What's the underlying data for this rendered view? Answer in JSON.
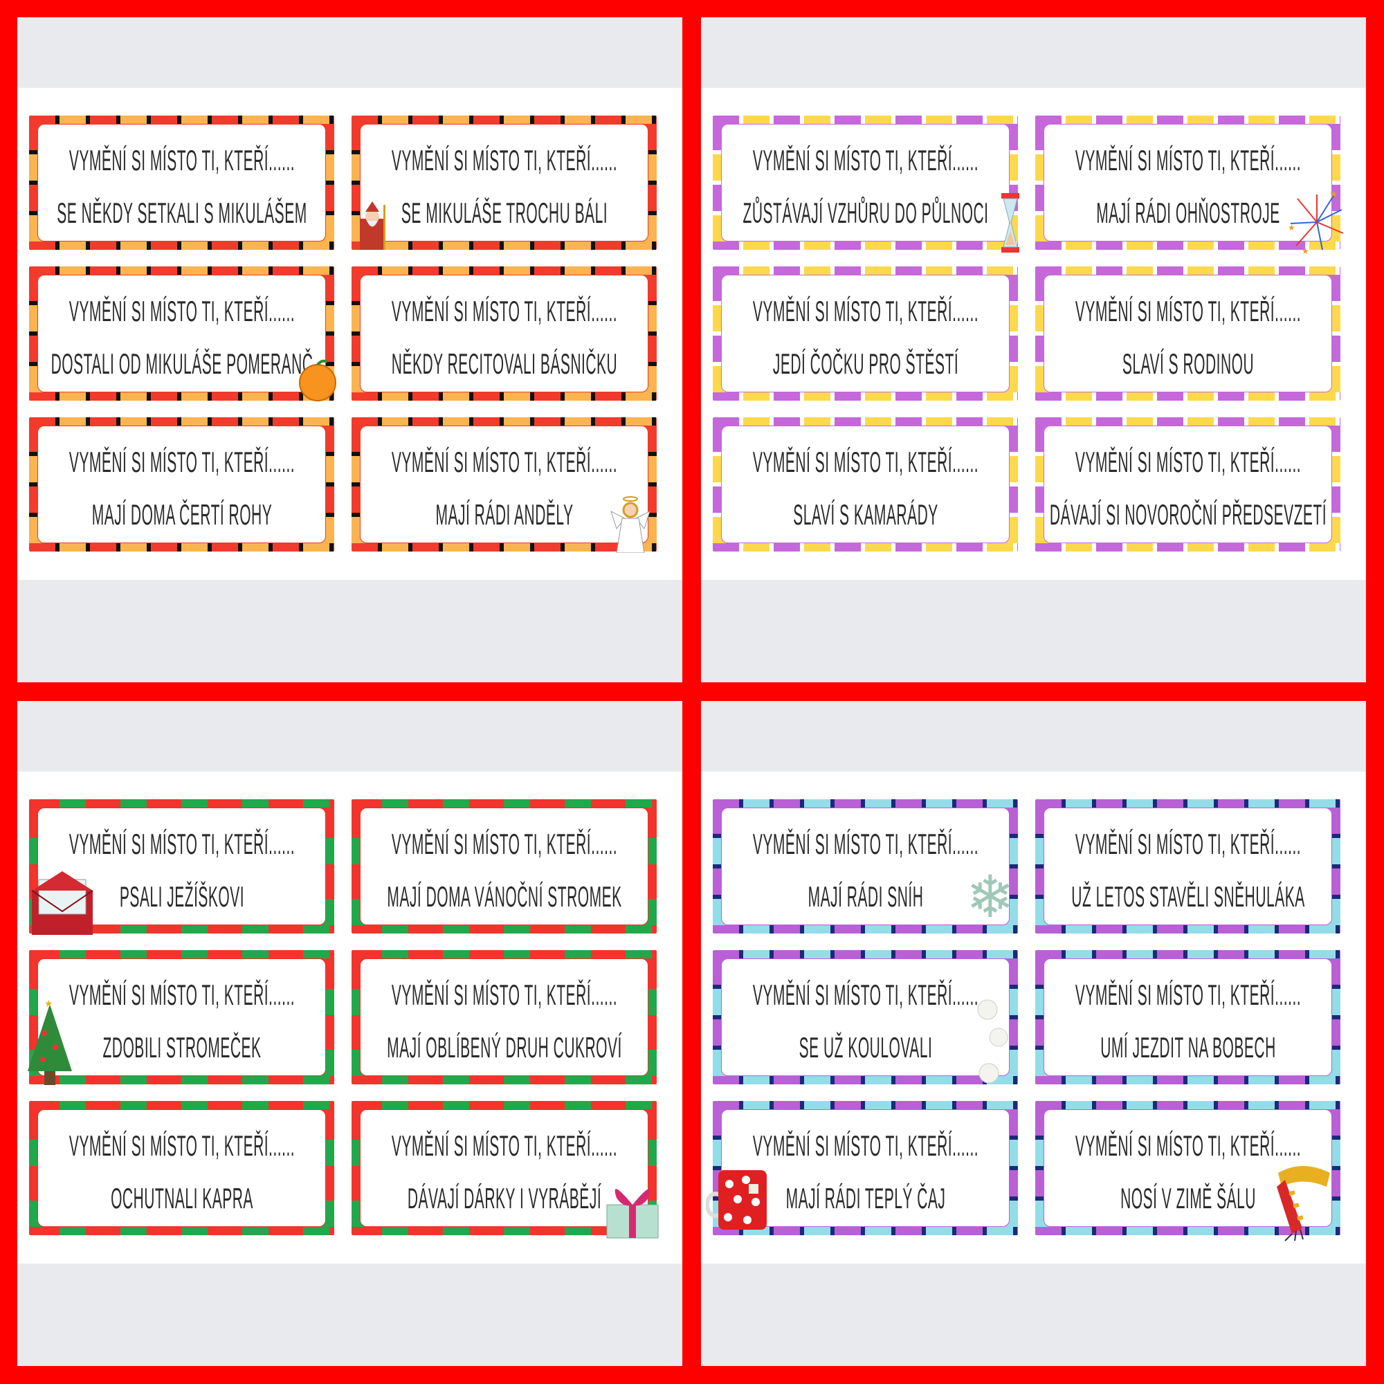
{
  "colors": {
    "background": "#ff0000"
  },
  "panels": [
    {
      "name": "mikulas",
      "colors": [
        "#f23b2c",
        "#fbb44f"
      ],
      "tick": "#111",
      "line": "#e83a2a",
      "cards": [
        {
          "line1": "VYMĚNÍ SI MÍSTO TI, KTEŘÍ......",
          "line2": "SE NĚKDY SETKALI S MIKULÁŠEM",
          "icon": ""
        },
        {
          "line1": "VYMĚNÍ SI MÍSTO TI, KTEŘÍ......",
          "line2": "SE MIKULÁŠE TROCHU BÁLI",
          "icon": "saint-nicholas-icon"
        },
        {
          "line1": "VYMĚNÍ SI MÍSTO TI, KTEŘÍ......",
          "line2": "DOSTALI OD MIKULÁŠE POMERANČ",
          "icon": "orange-icon"
        },
        {
          "line1": "VYMĚNÍ SI MÍSTO TI, KTEŘÍ......",
          "line2": "NĚKDY RECITOVALI BÁSNIČKU",
          "icon": ""
        },
        {
          "line1": "VYMĚNÍ SI MÍSTO TI, KTEŘÍ......",
          "line2": "MAJÍ DOMA ČERTÍ ROHY",
          "icon": ""
        },
        {
          "line1": "VYMĚNÍ SI MÍSTO TI, KTEŘÍ......",
          "line2": "MAJÍ RÁDI ANDĚLY",
          "icon": "angel-icon"
        }
      ]
    },
    {
      "name": "new-year",
      "colors": [
        "#c468da",
        "#fcd94c"
      ],
      "tick": "#fff",
      "line": "#c468da",
      "cards": [
        {
          "line1": "VYMĚNÍ SI MÍSTO TI, KTEŘÍ......",
          "line2": "ZŮSTÁVAJÍ VZHŮRU DO PŮLNOCI",
          "icon": "hourglass-icon"
        },
        {
          "line1": "VYMĚNÍ SI MÍSTO TI, KTEŘÍ......",
          "line2": "MAJÍ RÁDI OHŇOSTROJE",
          "icon": "fireworks-icon"
        },
        {
          "line1": "VYMĚNÍ SI MÍSTO TI, KTEŘÍ......",
          "line2": "JEDÍ ČOČKU PRO ŠTĚSTÍ",
          "icon": ""
        },
        {
          "line1": "VYMĚNÍ SI MÍSTO TI, KTEŘÍ......",
          "line2": "SLAVÍ S RODINOU",
          "icon": ""
        },
        {
          "line1": "VYMĚNÍ SI MÍSTO TI, KTEŘÍ......",
          "line2": "SLAVÍ S KAMARÁDY",
          "icon": ""
        },
        {
          "line1": "VYMĚNÍ SI MÍSTO TI, KTEŘÍ......",
          "line2": "DÁVAJÍ SI NOVOROČNÍ PŘEDSEVZETÍ",
          "icon": ""
        }
      ]
    },
    {
      "name": "christmas",
      "colors": [
        "#f2342c",
        "#22a84b"
      ],
      "tick": "#f2342c",
      "line": "#e8342a",
      "cards": [
        {
          "line1": "VYMĚNÍ SI MÍSTO TI, KTEŘÍ......",
          "line2": "PSALI JEŽÍŠKOVI",
          "icon": "letter-icon"
        },
        {
          "line1": "VYMĚNÍ SI MÍSTO TI, KTEŘÍ......",
          "line2": "MAJÍ DOMA VÁNOČNÍ STROMEK",
          "icon": ""
        },
        {
          "line1": "VYMĚNÍ SI MÍSTO TI, KTEŘÍ......",
          "line2": "ZDOBILI STROMEČEK",
          "icon": "christmas-tree-icon"
        },
        {
          "line1": "VYMĚNÍ SI MÍSTO TI, KTEŘÍ......",
          "line2": "MAJÍ OBLÍBENÝ DRUH CUKROVÍ",
          "icon": ""
        },
        {
          "line1": "VYMĚNÍ SI MÍSTO TI, KTEŘÍ......",
          "line2": "OCHUTNALI KAPRA",
          "icon": ""
        },
        {
          "line1": "VYMĚNÍ SI MÍSTO TI, KTEŘÍ......",
          "line2": "DÁVAJÍ DÁRKY I VYRÁBĚJÍ",
          "icon": "gift-icon"
        }
      ]
    },
    {
      "name": "winter",
      "colors": [
        "#b960d6",
        "#93dde9"
      ],
      "tick": "#1a2a7a",
      "line": "#b960d6",
      "cards": [
        {
          "line1": "VYMĚNÍ SI MÍSTO TI, KTEŘÍ......",
          "line2": "MAJÍ RÁDI SNÍH",
          "icon": "snowflake-icon"
        },
        {
          "line1": "VYMĚNÍ SI MÍSTO TI, KTEŘÍ......",
          "line2": "UŽ LETOS STAVĚLI SNĚHULÁKA",
          "icon": ""
        },
        {
          "line1": "VYMĚNÍ SI MÍSTO TI, KTEŘÍ......",
          "line2": "SE UŽ KOULOVALI",
          "icon": "snowballs-icon"
        },
        {
          "line1": "VYMĚNÍ SI MÍSTO TI, KTEŘÍ......",
          "line2": "UMÍ JEZDIT NA BOBECH",
          "icon": ""
        },
        {
          "line1": "VYMĚNÍ SI MÍSTO TI, KTEŘÍ......",
          "line2": "MAJÍ RÁDI TEPLÝ ČAJ",
          "icon": "tea-mug-icon"
        },
        {
          "line1": "VYMĚNÍ SI MÍSTO TI, KTEŘÍ......",
          "line2": "NOSÍ V ZIMĚ ŠÁLU",
          "icon": "scarf-icon"
        }
      ]
    }
  ]
}
